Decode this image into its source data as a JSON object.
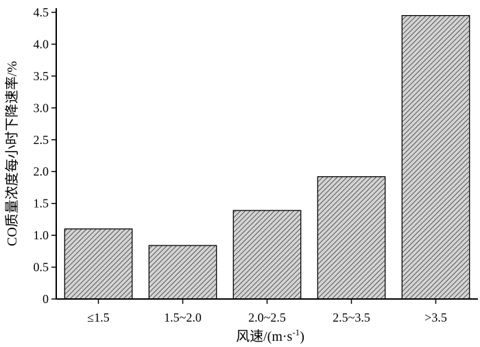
{
  "chart_data": {
    "type": "bar",
    "categories": [
      "≤1.5",
      "1.5~2.0",
      "2.0~2.5",
      "2.5~3.5",
      ">3.5"
    ],
    "values": [
      1.1,
      0.84,
      1.39,
      1.92,
      4.45
    ],
    "xlabel": "风速/(m·s",
    "xlabel_sup": "-1",
    "xlabel_suffix": ")",
    "ylabel": "CO质量浓度每小时下降速率/%",
    "ylim": [
      0,
      4.5
    ],
    "yticks": [
      "0",
      "0.5",
      "1.0",
      "1.5",
      "2.0",
      "2.5",
      "3.0",
      "3.5",
      "4.0",
      "4.5"
    ],
    "bar_fill": "hatched",
    "bar_color": "#9a9a9a",
    "grid": false,
    "legend": "none"
  }
}
